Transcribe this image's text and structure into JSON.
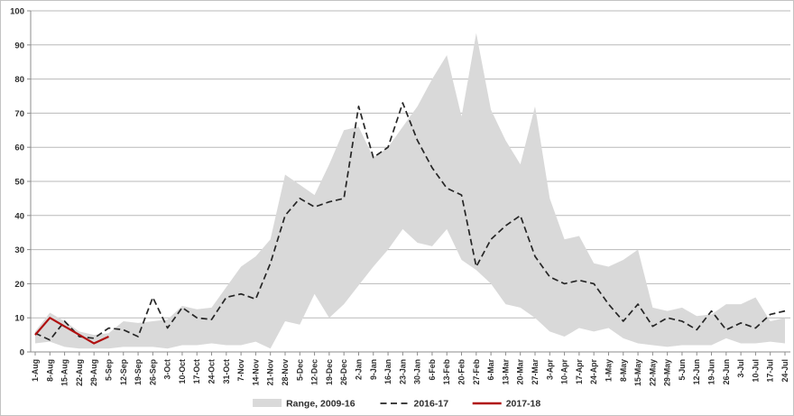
{
  "chart_data": {
    "type": "line",
    "title": "",
    "xlabel": "",
    "ylabel": "",
    "ylim": [
      0,
      100
    ],
    "ytick_step": 10,
    "grid": true,
    "legend_position": "bottom-center",
    "colors": {
      "grid": "#b9b9b9",
      "axis": "#8c8c8c",
      "band": "#d9d9d9",
      "dashed_line": "#262626",
      "red_line": "#b01010",
      "text": "#2e2e2e"
    },
    "categories": [
      "1-Aug",
      "8-Aug",
      "15-Aug",
      "22-Aug",
      "29-Aug",
      "5-Sep",
      "12-Sep",
      "19-Sep",
      "26-Sep",
      "3-Oct",
      "10-Oct",
      "17-Oct",
      "24-Oct",
      "31-Oct",
      "7-Nov",
      "14-Nov",
      "21-Nov",
      "28-Nov",
      "5-Dec",
      "12-Dec",
      "19-Dec",
      "26-Dec",
      "2-Jan",
      "9-Jan",
      "16-Jan",
      "23-Jan",
      "30-Jan",
      "6-Feb",
      "13-Feb",
      "20-Feb",
      "27-Feb",
      "6-Mar",
      "13-Mar",
      "20-Mar",
      "27-Mar",
      "3-Apr",
      "10-Apr",
      "17-Apr",
      "24-Apr",
      "1-May",
      "8-May",
      "15-May",
      "22-May",
      "29-May",
      "5-Jun",
      "12-Jun",
      "19-Jun",
      "26-Jun",
      "3-Jul",
      "10-Jul",
      "17-Jul",
      "24-Jul"
    ],
    "series": [
      {
        "name": "Range, 2009-16",
        "type": "band",
        "color": "#d9d9d9",
        "upper": [
          6,
          11.5,
          9,
          6,
          5,
          5.5,
          9,
          8.5,
          9,
          9.5,
          13.5,
          12.5,
          13,
          19,
          25,
          28,
          33,
          52,
          49,
          46,
          55,
          65,
          66,
          57,
          60,
          66,
          72,
          80,
          87,
          69,
          93.5,
          71,
          62,
          55,
          72,
          45,
          33,
          34,
          26,
          25,
          27,
          30,
          13,
          12,
          13,
          10.5,
          11,
          14,
          14,
          16,
          9,
          10
        ],
        "lower": [
          2.5,
          3,
          1.5,
          1,
          1,
          1,
          1.5,
          1.5,
          1.5,
          1,
          2,
          2,
          2.5,
          2,
          2,
          3,
          1,
          9,
          8,
          17,
          10,
          14,
          19.5,
          25,
          30,
          36,
          32,
          31,
          36,
          27,
          24,
          20,
          14,
          13,
          10,
          6,
          4.5,
          7,
          6,
          7,
          4,
          2.5,
          2,
          1.5,
          2,
          2,
          2,
          4,
          2.5,
          2.5,
          3,
          2.5
        ]
      },
      {
        "name": "2016-17",
        "type": "line",
        "style": "dashed",
        "color": "#262626",
        "values": [
          5.5,
          3.5,
          9,
          4.5,
          4,
          7,
          6.5,
          4.5,
          16,
          7,
          13,
          10,
          9.5,
          16,
          17,
          15.5,
          26,
          40,
          45,
          42.5,
          44,
          45,
          72,
          57,
          60,
          73,
          62,
          54,
          48,
          46,
          25,
          33,
          37,
          40,
          28,
          22,
          20,
          21,
          20,
          14,
          9,
          14,
          7.5,
          10,
          9,
          6.5,
          12,
          6.5,
          8.5,
          7,
          11,
          12
        ]
      },
      {
        "name": "2017-18",
        "type": "line",
        "style": "solid",
        "color": "#b01010",
        "values": [
          5,
          10,
          7.5,
          5,
          2.5,
          4.5
        ]
      }
    ]
  }
}
